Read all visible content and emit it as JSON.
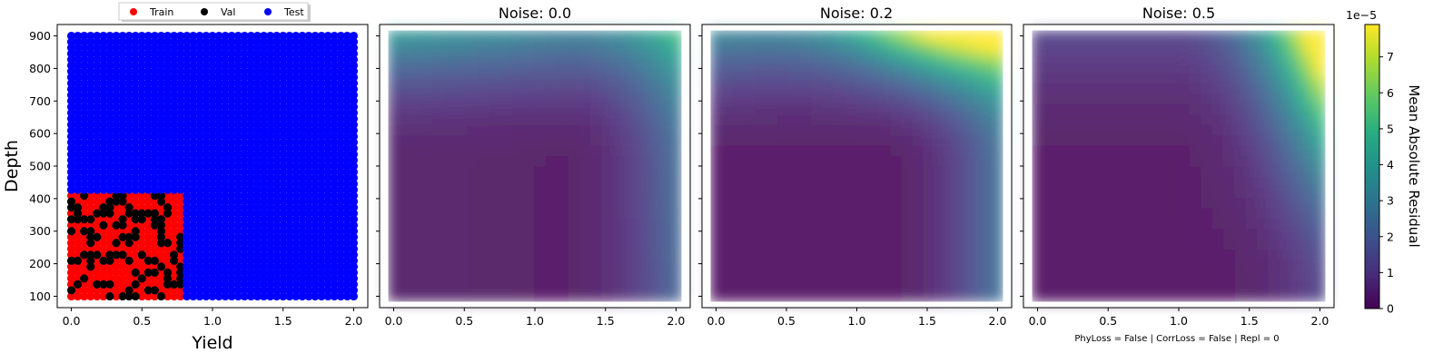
{
  "figure": {
    "footer": "PhyLoss = False | CorrLoss = False | Repl = 0"
  },
  "colors": {
    "train": "#ff0000",
    "val": "#000000",
    "test": "#0000ff"
  },
  "chart_data": [
    {
      "type": "scatter",
      "title": "",
      "xlabel": "Yield",
      "ylabel": "Depth",
      "xlim": [
        -0.1,
        2.1
      ],
      "ylim": [
        65,
        935
      ],
      "xticks": [
        "0.0",
        "0.5",
        "1.0",
        "1.5",
        "2.0"
      ],
      "yticks": [
        "100",
        "200",
        "300",
        "400",
        "500",
        "600",
        "700",
        "800",
        "900"
      ],
      "legend": {
        "placement": "top-left",
        "entries": [
          "Train",
          "Val",
          "Test"
        ]
      },
      "series": [
        {
          "name": "Train",
          "color": "#ff0000",
          "x_range": [
            0.0,
            0.8
          ],
          "y_range": [
            100,
            425
          ]
        },
        {
          "name": "Val",
          "color": "#000000",
          "x_range": [
            0.0,
            0.8
          ],
          "y_range": [
            100,
            425
          ],
          "fraction_of_train_region": 0.35
        },
        {
          "name": "Test",
          "color": "#0000ff",
          "x_range": [
            0.0,
            2.0
          ],
          "y_range": [
            100,
            900
          ],
          "excludes_region": {
            "x": [
              0.0,
              0.8
            ],
            "y": [
              100,
              425
            ]
          }
        }
      ]
    },
    {
      "type": "heatmap",
      "title": "Noise: 0.0",
      "xlim": [
        -0.1,
        2.1
      ],
      "ylim": [
        65,
        935
      ],
      "xticks": [
        "0.0",
        "0.5",
        "1.0",
        "1.5",
        "2.0"
      ],
      "x_range": [
        0.0,
        2.0
      ],
      "y_range": [
        100,
        900
      ],
      "value_peak": {
        "x": 0.0,
        "y": 900,
        "value": 3.8e-05
      },
      "value_right_edge": {
        "x": 2.0,
        "y": 400,
        "value": 2.3e-05
      }
    },
    {
      "type": "heatmap",
      "title": "Noise: 0.2",
      "xlim": [
        -0.1,
        2.1
      ],
      "ylim": [
        65,
        935
      ],
      "xticks": [
        "0.0",
        "0.5",
        "1.0",
        "1.5",
        "2.0"
      ],
      "x_range": [
        0.0,
        2.0
      ],
      "y_range": [
        100,
        900
      ],
      "value_peak": {
        "x": 1.8,
        "y": 900,
        "value": 7.5e-05
      },
      "value_right_edge": {
        "x": 2.0,
        "y": 400,
        "value": 2.6e-05
      }
    },
    {
      "type": "heatmap",
      "title": "Noise: 0.5",
      "xlim": [
        -0.1,
        2.1
      ],
      "ylim": [
        65,
        935
      ],
      "xticks": [
        "0.0",
        "0.5",
        "1.0",
        "1.5",
        "2.0"
      ],
      "x_range": [
        0.0,
        2.0
      ],
      "y_range": [
        100,
        900
      ],
      "value_peak": {
        "x": 2.0,
        "y": 900,
        "value": 7.6e-05
      },
      "value_right_edge": {
        "x": 2.0,
        "y": 400,
        "value": 4.2e-05
      }
    }
  ],
  "colorbar": {
    "label": "Mean Absolute Residual",
    "exponent": "1e−5",
    "range": [
      0,
      7.9
    ],
    "ticks": [
      "0",
      "1",
      "2",
      "3",
      "4",
      "5",
      "6",
      "7"
    ],
    "colormap": "viridis"
  }
}
